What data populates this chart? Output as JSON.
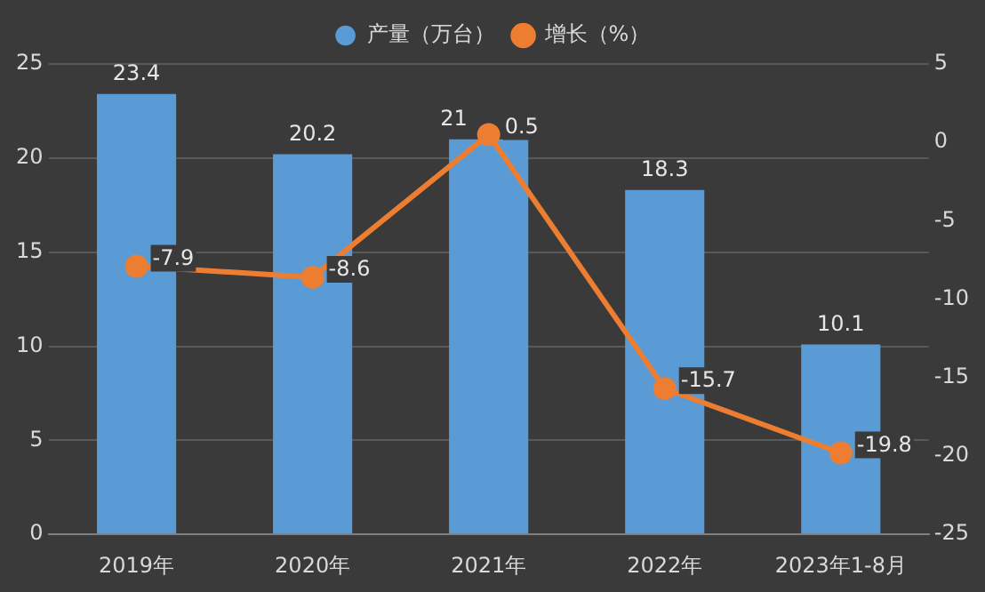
{
  "chart_data": {
    "type": "bar",
    "categories": [
      "2019年",
      "2020年",
      "2021年",
      "2022年",
      "2023年1-8月"
    ],
    "series": [
      {
        "name": "产量（万台）",
        "color": "#5b9bd5",
        "values": [
          23.4,
          20.2,
          21,
          18.3,
          10.1
        ]
      },
      {
        "name": "增长（%）",
        "type": "line",
        "axis": "y2",
        "color": "#ed7d31",
        "values": [
          -7.9,
          -8.6,
          0.5,
          -15.7,
          -19.8
        ]
      }
    ],
    "ylim": [
      0,
      25
    ],
    "yticks": [
      0,
      5,
      10,
      15,
      20,
      25
    ],
    "y2lim": [
      -25,
      5
    ],
    "y2ticks": [
      -25,
      -20,
      -15,
      -10,
      -5,
      0,
      5
    ],
    "grid": "y",
    "legend": "top",
    "data_labels": true,
    "marker": "circle",
    "line_style": "solid"
  }
}
